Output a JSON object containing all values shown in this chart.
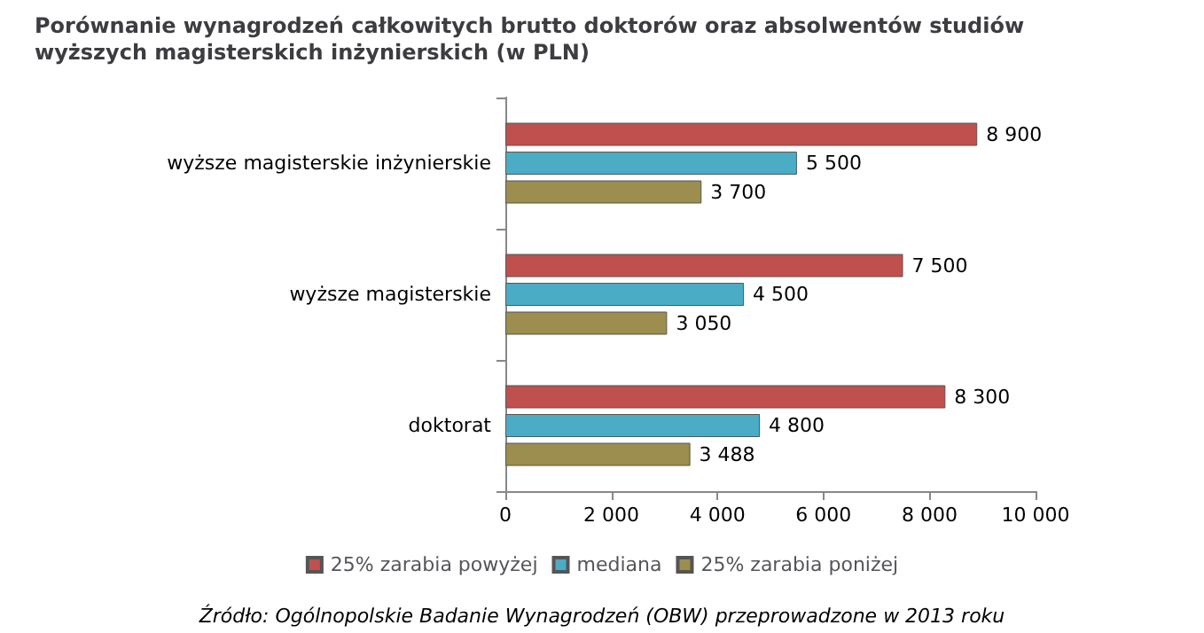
{
  "chart_data": {
    "type": "bar",
    "orientation": "horizontal",
    "title": "Porównanie wynagrodzeń całkowitych brutto doktorów oraz absolwentów studiów wyższych magisterskich inżynierskich (w PLN)",
    "categories": [
      "wyższe magisterskie inżynierskie",
      "wyższe magisterskie",
      "doktorat"
    ],
    "series": [
      {
        "name": "25% zarabia powyżej",
        "color": "#c0504d",
        "values": [
          8900,
          7500,
          8300
        ],
        "value_labels": [
          "8 900",
          "7 500",
          "8 300"
        ]
      },
      {
        "name": "mediana",
        "color": "#4bacc6",
        "values": [
          5500,
          4500,
          4800
        ],
        "value_labels": [
          "5 500",
          "4 500",
          "4 800"
        ]
      },
      {
        "name": "25% zarabia poniżej",
        "color": "#9b8e4e",
        "values": [
          3700,
          3050,
          3488
        ],
        "value_labels": [
          "3 700",
          "3 050",
          "3 488"
        ]
      }
    ],
    "xlim": [
      0,
      10000
    ],
    "xticks": [
      {
        "value": 0,
        "label": "0"
      },
      {
        "value": 2000,
        "label": "2 000"
      },
      {
        "value": 4000,
        "label": "4 000"
      },
      {
        "value": 6000,
        "label": "6 000"
      },
      {
        "value": 8000,
        "label": "8 000"
      },
      {
        "value": 10000,
        "label": "10 000"
      }
    ],
    "legend": "bottom",
    "annotations": [
      "Źródło: Ogólnopolskie Badanie Wynagrodzeń (OBW) przeprowadzone w 2013 roku"
    ]
  }
}
